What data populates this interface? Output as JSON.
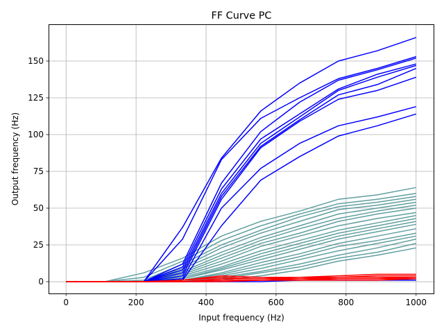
{
  "chart_data": {
    "type": "line",
    "title": "FF Curve PC",
    "xlabel": "Input frequency (Hz)",
    "ylabel": "Output frequency (Hz)",
    "xlim": [
      -50,
      1050
    ],
    "ylim": [
      -8,
      175
    ],
    "xticks": [
      0,
      200,
      400,
      600,
      800,
      1000
    ],
    "yticks": [
      0,
      25,
      50,
      75,
      100,
      125,
      150
    ],
    "grid": true,
    "x": [
      0,
      111,
      222,
      333,
      444,
      556,
      667,
      778,
      889,
      1000
    ],
    "groups": [
      {
        "color": "#0000ff",
        "series": [
          {
            "values": [
              0,
              0,
              0,
              37,
              84,
              116,
              135,
              150,
              157,
              166
            ]
          },
          {
            "values": [
              0,
              0,
              0,
              29,
              83,
              111,
              125,
              138,
              145,
              153
            ]
          },
          {
            "values": [
              0,
              0,
              0,
              12,
              67,
              102,
              122,
              137,
              144,
              152
            ]
          },
          {
            "values": [
              0,
              0,
              0,
              10,
              63,
              97,
              114,
              131,
              141,
              148
            ]
          },
          {
            "values": [
              0,
              0,
              0,
              8,
              60,
              94,
              112,
              130,
              139,
              147
            ]
          },
          {
            "values": [
              0,
              0,
              0,
              6,
              58,
              92,
              110,
              127,
              134,
              145
            ]
          },
          {
            "values": [
              0,
              0,
              0,
              4,
              56,
              91,
              109,
              124,
              130,
              139
            ]
          },
          {
            "values": [
              0,
              0,
              0,
              2,
              50,
              77,
              94,
              106,
              112,
              119
            ]
          },
          {
            "values": [
              0,
              0,
              0,
              1,
              38,
              69,
              85,
              99,
              106,
              114
            ]
          },
          {
            "values": [
              0,
              0,
              0,
              0,
              0,
              0,
              1,
              1,
              1,
              1
            ]
          }
        ]
      },
      {
        "color": "#5f9ea0",
        "series": [
          {
            "values": [
              0,
              0,
              6,
              16,
              31,
              41,
              48,
              56,
              59,
              64
            ]
          },
          {
            "values": [
              0,
              0,
              3,
              14,
              28,
              38,
              46,
              53,
              56,
              60
            ]
          },
          {
            "values": [
              0,
              0,
              1,
              12,
              25,
              35,
              44,
              51,
              54,
              58
            ]
          },
          {
            "values": [
              0,
              0,
              0,
              10,
              23,
              33,
              41,
              49,
              52,
              56
            ]
          },
          {
            "values": [
              0,
              0,
              0,
              9,
              20,
              30,
              38,
              46,
              50,
              54
            ]
          },
          {
            "values": [
              0,
              0,
              0,
              7,
              18,
              28,
              36,
              43,
              48,
              52
            ]
          },
          {
            "values": [
              0,
              0,
              0,
              6,
              16,
              26,
              33,
              41,
              46,
              50
            ]
          },
          {
            "values": [
              0,
              0,
              0,
              5,
              14,
              24,
              31,
              38,
              43,
              47
            ]
          },
          {
            "values": [
              0,
              0,
              0,
              4,
              12,
              21,
              28,
              35,
              40,
              45
            ]
          },
          {
            "values": [
              0,
              0,
              0,
              3,
              10,
              19,
              26,
              33,
              38,
              43
            ]
          },
          {
            "values": [
              0,
              0,
              0,
              2,
              9,
              17,
              24,
              31,
              36,
              41
            ]
          },
          {
            "values": [
              0,
              0,
              0,
              2,
              8,
              15,
              22,
              29,
              34,
              39
            ]
          },
          {
            "values": [
              0,
              0,
              0,
              1,
              6,
              13,
              19,
              26,
              31,
              36
            ]
          },
          {
            "values": [
              0,
              0,
              0,
              1,
              5,
              11,
              17,
              24,
              28,
              33
            ]
          },
          {
            "values": [
              0,
              0,
              0,
              0,
              4,
              9,
              15,
              21,
              26,
              31
            ]
          },
          {
            "values": [
              0,
              0,
              0,
              0,
              3,
              7,
              12,
              18,
              23,
              29
            ]
          },
          {
            "values": [
              0,
              0,
              0,
              0,
              2,
              6,
              10,
              16,
              20,
              26
            ]
          },
          {
            "values": [
              0,
              0,
              0,
              0,
              1,
              4,
              8,
              14,
              18,
              23
            ]
          }
        ]
      },
      {
        "color": "#ff0000",
        "series": [
          {
            "values": [
              0,
              0,
              0,
              1,
              4,
              3,
              3,
              4,
              5,
              5
            ]
          },
          {
            "values": [
              0,
              0,
              0,
              1,
              3,
              2,
              3,
              3,
              4,
              4
            ]
          },
          {
            "values": [
              0,
              0,
              0,
              0,
              2,
              2,
              2,
              3,
              3,
              3
            ]
          },
          {
            "values": [
              0,
              0,
              0,
              0,
              1,
              1,
              2,
              2,
              2,
              3
            ]
          },
          {
            "values": [
              0,
              0,
              0,
              0,
              1,
              1,
              1,
              2,
              2,
              2
            ]
          },
          {
            "values": [
              0,
              0,
              0,
              0,
              0,
              1,
              1,
              1,
              1,
              2
            ]
          }
        ]
      }
    ]
  }
}
